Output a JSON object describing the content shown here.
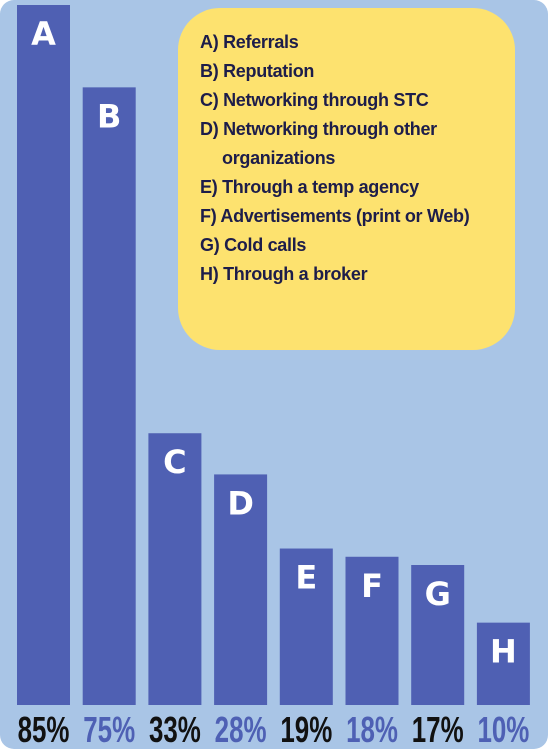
{
  "chart_data": {
    "type": "bar",
    "categories": [
      "A",
      "B",
      "C",
      "D",
      "E",
      "F",
      "G",
      "H"
    ],
    "values": [
      85,
      75,
      33,
      28,
      19,
      18,
      17,
      10
    ],
    "value_labels": [
      "85%",
      "75%",
      "33%",
      "28%",
      "19%",
      "18%",
      "17%",
      "10%"
    ],
    "color": "#4f60b3",
    "legend": [
      "A) Referrals",
      "B) Reputation",
      "C) Networking through STC",
      "D) Networking through other organizations",
      "E) Through a temp agency",
      "F) Advertisements (print or Web)",
      "G) Cold calls",
      "H) Through a broker"
    ]
  }
}
